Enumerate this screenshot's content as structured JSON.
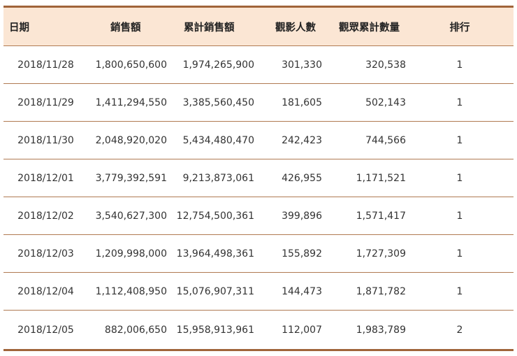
{
  "table": {
    "headers": [
      "日期",
      "銷售額",
      "累計銷售額",
      "觀影人數",
      "觀眾累計數量",
      "排行"
    ],
    "rows": [
      [
        "2018/11/28",
        "1,800,650,600",
        "1,974,265,900",
        "301,330",
        "320,538",
        "1"
      ],
      [
        "2018/11/29",
        "1,411,294,550",
        "3,385,560,450",
        "181,605",
        "502,143",
        "1"
      ],
      [
        "2018/11/30",
        "2,048,920,020",
        "5,434,480,470",
        "242,423",
        "744,566",
        "1"
      ],
      [
        "2018/12/01",
        "3,779,392,591",
        "9,213,873,061",
        "426,955",
        "1,171,521",
        "1"
      ],
      [
        "2018/12/02",
        "3,540,627,300",
        "12,754,500,361",
        "399,896",
        "1,571,417",
        "1"
      ],
      [
        "2018/12/03",
        "1,209,998,000",
        "13,964,498,361",
        "155,892",
        "1,727,309",
        "1"
      ],
      [
        "2018/12/04",
        "1,112,408,950",
        "15,076,907,311",
        "144,473",
        "1,871,782",
        "1"
      ],
      [
        "2018/12/05",
        "882,006,650",
        "15,958,913,961",
        "112,007",
        "1,983,789",
        "2"
      ]
    ]
  },
  "colors": {
    "rule": "#a0643a",
    "header_bg": "#fbe6d4",
    "divider": "#b07a52"
  }
}
